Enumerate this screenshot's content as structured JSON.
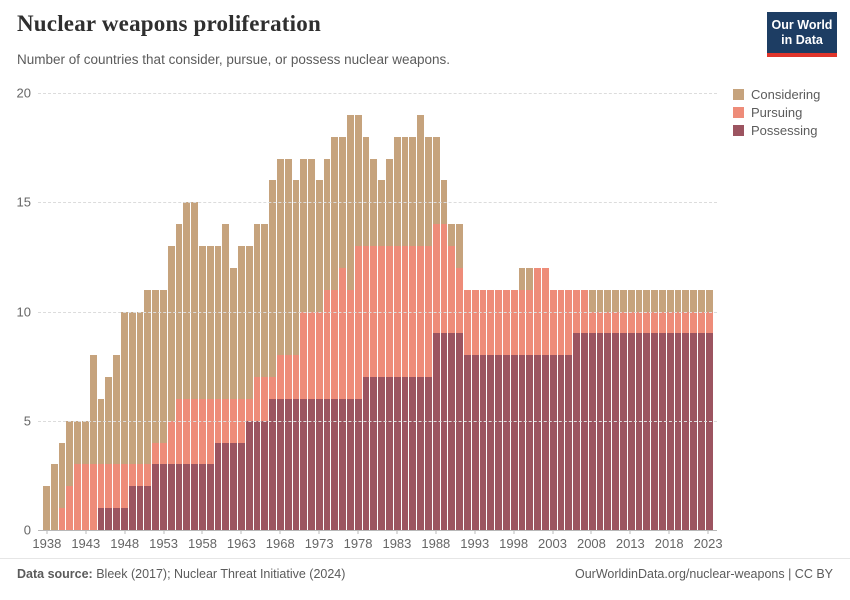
{
  "header": {
    "title": "Nuclear weapons proliferation",
    "subtitle": "Number of countries that consider, pursue, or possess nuclear weapons."
  },
  "logo": {
    "line1": "Our World",
    "line2": "in Data",
    "bg_color": "#1d3d63",
    "accent_color": "#e0352b"
  },
  "legend": [
    {
      "label": "Considering",
      "color": "#C6A37D"
    },
    {
      "label": "Pursuing",
      "color": "#EE8C79"
    },
    {
      "label": "Possessing",
      "color": "#9C5460"
    }
  ],
  "chart_data": {
    "type": "bar",
    "stacked": true,
    "title": "Nuclear weapons proliferation",
    "xlabel": "",
    "ylabel": "",
    "ylim": [
      0,
      20
    ],
    "yticks": [
      0,
      5,
      10,
      15,
      20
    ],
    "xticks": [
      1938,
      1943,
      1948,
      1953,
      1958,
      1963,
      1968,
      1973,
      1978,
      1983,
      1988,
      1993,
      1998,
      2003,
      2008,
      2013,
      2018,
      2023
    ],
    "grid": "horizontal-dashed",
    "legend_position": "right",
    "x": [
      1938,
      1939,
      1940,
      1941,
      1942,
      1943,
      1944,
      1945,
      1946,
      1947,
      1948,
      1949,
      1950,
      1951,
      1952,
      1953,
      1954,
      1955,
      1956,
      1957,
      1958,
      1959,
      1960,
      1961,
      1962,
      1963,
      1964,
      1965,
      1966,
      1967,
      1968,
      1969,
      1970,
      1971,
      1972,
      1973,
      1974,
      1975,
      1976,
      1977,
      1978,
      1979,
      1980,
      1981,
      1982,
      1983,
      1984,
      1985,
      1986,
      1987,
      1988,
      1989,
      1990,
      1991,
      1992,
      1993,
      1994,
      1995,
      1996,
      1997,
      1998,
      1999,
      2000,
      2001,
      2002,
      2003,
      2004,
      2005,
      2006,
      2007,
      2008,
      2009,
      2010,
      2011,
      2012,
      2013,
      2014,
      2015,
      2016,
      2017,
      2018,
      2019,
      2020,
      2021,
      2022,
      2023
    ],
    "series": [
      {
        "name": "Possessing",
        "color": "#9C5460",
        "values": [
          0,
          0,
          0,
          0,
          0,
          0,
          0,
          1,
          1,
          1,
          1,
          2,
          2,
          2,
          3,
          3,
          3,
          3,
          3,
          3,
          3,
          3,
          4,
          4,
          4,
          4,
          5,
          5,
          5,
          6,
          6,
          6,
          6,
          6,
          6,
          6,
          6,
          6,
          6,
          6,
          6,
          7,
          7,
          7,
          7,
          7,
          7,
          7,
          7,
          7,
          9,
          9,
          9,
          9,
          8,
          8,
          8,
          8,
          8,
          8,
          8,
          8,
          8,
          8,
          8,
          8,
          8,
          8,
          9,
          9,
          9,
          9,
          9,
          9,
          9,
          9,
          9,
          9,
          9,
          9,
          9,
          9,
          9,
          9,
          9,
          9
        ]
      },
      {
        "name": "Pursuing",
        "color": "#EE8C79",
        "values": [
          0,
          0,
          1,
          2,
          3,
          3,
          3,
          2,
          2,
          2,
          2,
          1,
          1,
          1,
          1,
          1,
          2,
          3,
          3,
          3,
          3,
          3,
          2,
          2,
          2,
          2,
          1,
          2,
          2,
          1,
          2,
          2,
          2,
          4,
          4,
          4,
          5,
          5,
          6,
          5,
          7,
          6,
          6,
          6,
          6,
          6,
          6,
          6,
          6,
          6,
          5,
          5,
          4,
          3,
          3,
          3,
          3,
          3,
          3,
          3,
          3,
          3,
          3,
          4,
          4,
          3,
          3,
          3,
          2,
          2,
          1,
          1,
          1,
          1,
          1,
          1,
          1,
          1,
          1,
          1,
          1,
          1,
          1,
          1,
          1,
          1
        ]
      },
      {
        "name": "Considering",
        "color": "#C6A37D",
        "values": [
          2,
          3,
          3,
          3,
          2,
          2,
          5,
          3,
          4,
          5,
          7,
          7,
          7,
          8,
          7,
          7,
          8,
          8,
          9,
          9,
          7,
          7,
          7,
          8,
          6,
          7,
          7,
          7,
          7,
          9,
          9,
          9,
          8,
          7,
          7,
          6,
          6,
          7,
          6,
          8,
          6,
          5,
          4,
          3,
          4,
          5,
          5,
          5,
          6,
          5,
          4,
          2,
          1,
          2,
          0,
          0,
          0,
          0,
          0,
          0,
          0,
          1,
          1,
          0,
          0,
          0,
          0,
          0,
          0,
          0,
          1,
          1,
          1,
          1,
          1,
          1,
          1,
          1,
          1,
          1,
          1,
          1,
          1,
          1,
          1,
          1
        ]
      }
    ]
  },
  "footer": {
    "source_label": "Data source:",
    "source_value": " Bleek (2017); Nuclear Threat Initiative (2024)",
    "attribution": "OurWorldinData.org/nuclear-weapons | CC BY"
  }
}
